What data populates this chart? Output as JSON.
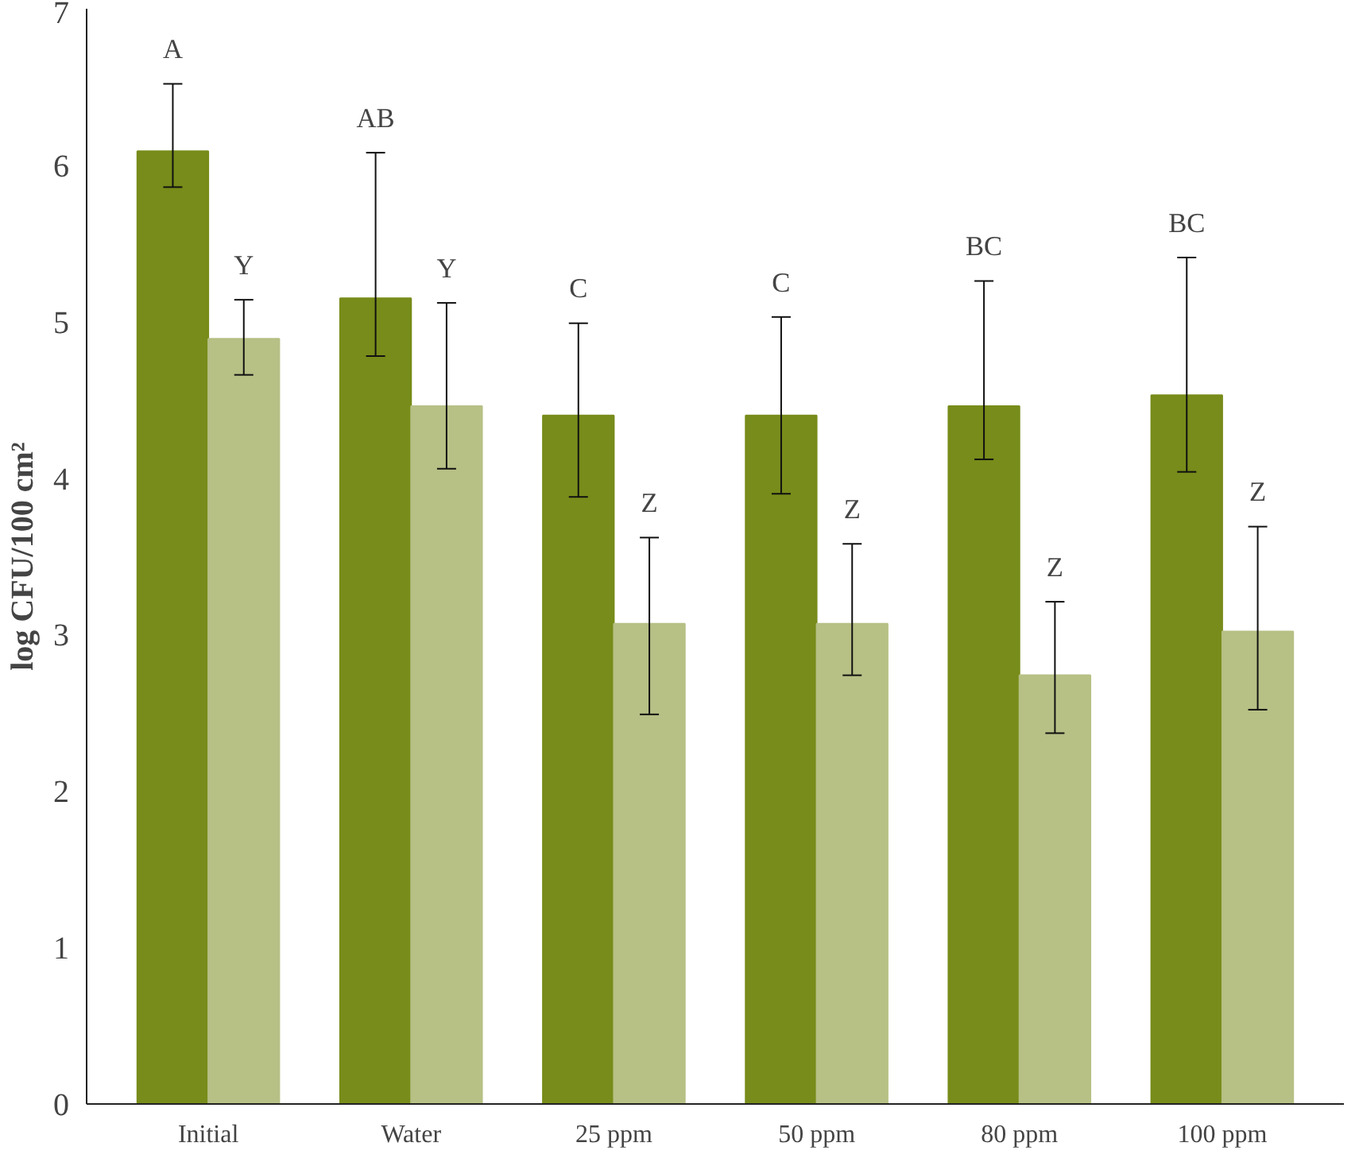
{
  "chart_data": {
    "type": "bar",
    "ylabel": "log CFU/100 cm²",
    "categories": [
      "Initial",
      "Water",
      "25 ppm",
      "50 ppm",
      "80 ppm",
      "100 ppm"
    ],
    "series": [
      {
        "color": "#778c1a",
        "values": [
          6.09,
          5.15,
          4.4,
          4.4,
          4.46,
          4.53
        ],
        "errors": [
          [
            5.86,
            6.52
          ],
          [
            4.78,
            6.08
          ],
          [
            3.88,
            4.99
          ],
          [
            3.9,
            5.03
          ],
          [
            4.12,
            5.26
          ],
          [
            4.04,
            5.41
          ]
        ]
      },
      {
        "color": "#b7c085",
        "values": [
          4.89,
          4.46,
          3.07,
          3.07,
          2.74,
          3.02
        ],
        "errors": [
          [
            4.66,
            5.14
          ],
          [
            4.06,
            5.12
          ],
          [
            2.49,
            3.62
          ],
          [
            2.74,
            3.58
          ],
          [
            2.37,
            3.21
          ],
          [
            2.52,
            3.69
          ]
        ]
      }
    ],
    "ylim": [
      0,
      7
    ],
    "yticks": [
      0,
      1,
      2,
      3,
      4,
      5,
      6,
      7
    ],
    "grid": false,
    "annotations": [
      "A",
      "Y",
      "AB",
      "Y",
      "C",
      "Z",
      "C",
      "Z",
      "BC",
      "Z",
      "BC",
      "Z"
    ]
  }
}
